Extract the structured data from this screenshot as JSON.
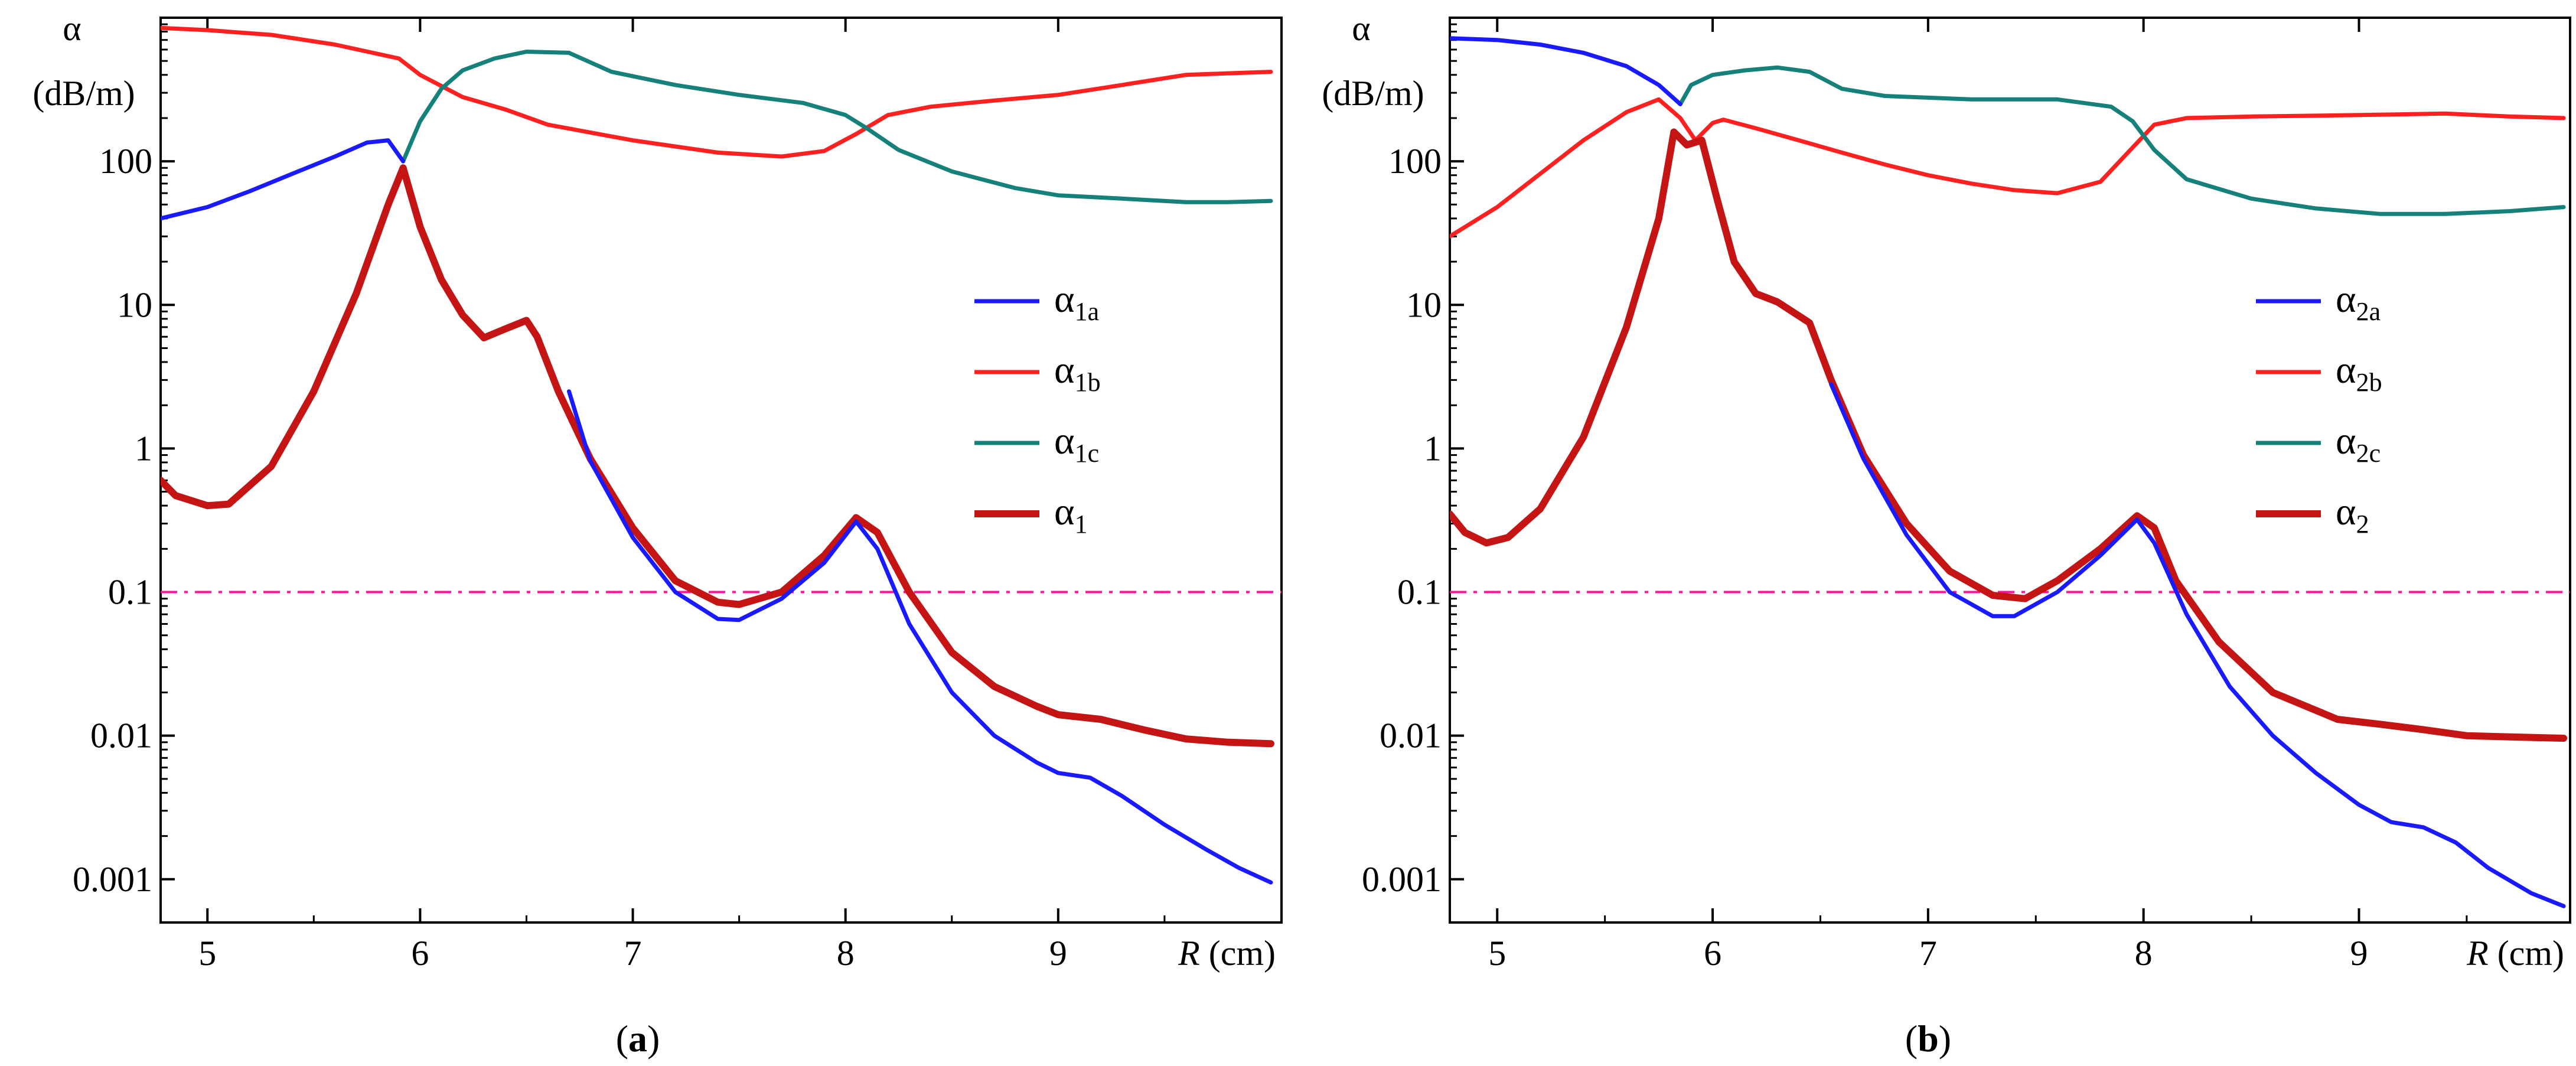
{
  "chart_data": [
    {
      "type": "line",
      "panel": "a",
      "caption": {
        "open": "(",
        "letter": "a",
        "close": ")"
      },
      "y_scale": "log",
      "ylim": [
        0.0005,
        1000
      ],
      "xlim": [
        4.78,
        10.05
      ],
      "ylabel_symbol": "α",
      "ylabel_unit": "(dB/m)",
      "xlabel_var": "R",
      "xlabel_unit": "(cm)",
      "x_ticks": [
        "5",
        "6",
        "7",
        "8",
        "9"
      ],
      "x_tick_values": [
        5,
        6,
        7,
        8,
        9
      ],
      "y_ticks": [
        "0.001",
        "0.01",
        "0.1",
        "1",
        "10",
        "100"
      ],
      "y_tick_values": [
        0.001,
        0.01,
        0.1,
        1,
        10,
        100
      ],
      "threshold": 0.1,
      "threshold_color": "#ff1493",
      "legend": [
        {
          "label": "α",
          "sub": "1a",
          "color": "#1a1aff"
        },
        {
          "label": "α",
          "sub": "1b",
          "color": "#ff2020"
        },
        {
          "label": "α",
          "sub": "1c",
          "color": "#16807a"
        },
        {
          "label": "α",
          "sub": "1",
          "color": "#c41414"
        }
      ],
      "series": [
        {
          "name": "α1a",
          "color": "#1a1aff",
          "width": 7,
          "points": [
            [
              4.78,
              40
            ],
            [
              5.0,
              48
            ],
            [
              5.2,
              62
            ],
            [
              5.4,
              82
            ],
            [
              5.6,
              108
            ],
            [
              5.75,
              135
            ],
            [
              5.85,
              140
            ],
            [
              5.92,
              100
            ]
          ]
        },
        {
          "name": "α1b",
          "color": "#ff2020",
          "width": 7,
          "points": [
            [
              4.78,
              850
            ],
            [
              5.0,
              820
            ],
            [
              5.3,
              760
            ],
            [
              5.6,
              650
            ],
            [
              5.8,
              560
            ],
            [
              5.9,
              520
            ],
            [
              6.0,
              400
            ],
            [
              6.2,
              280
            ],
            [
              6.4,
              230
            ],
            [
              6.6,
              180
            ],
            [
              7.0,
              140
            ],
            [
              7.4,
              115
            ],
            [
              7.7,
              108
            ],
            [
              7.9,
              118
            ],
            [
              8.05,
              155
            ],
            [
              8.2,
              210
            ],
            [
              8.4,
              240
            ],
            [
              8.7,
              265
            ],
            [
              9.0,
              290
            ],
            [
              9.3,
              340
            ],
            [
              9.6,
              400
            ],
            [
              9.8,
              410
            ],
            [
              10.0,
              420
            ]
          ]
        },
        {
          "name": "α1c",
          "color": "#16807a",
          "width": 7,
          "points": [
            [
              5.92,
              100
            ],
            [
              6.0,
              190
            ],
            [
              6.1,
              320
            ],
            [
              6.2,
              430
            ],
            [
              6.35,
              520
            ],
            [
              6.5,
              580
            ],
            [
              6.7,
              570
            ],
            [
              6.9,
              420
            ],
            [
              7.2,
              340
            ],
            [
              7.5,
              290
            ],
            [
              7.8,
              255
            ],
            [
              8.0,
              210
            ],
            [
              8.1,
              170
            ],
            [
              8.25,
              120
            ],
            [
              8.5,
              85
            ],
            [
              8.8,
              65
            ],
            [
              9.0,
              58
            ],
            [
              9.3,
              55
            ],
            [
              9.6,
              52
            ],
            [
              9.8,
              52
            ],
            [
              10.0,
              53
            ]
          ]
        },
        {
          "name": "α1",
          "color": "#c41414",
          "width": 12,
          "points": [
            [
              4.78,
              0.6
            ],
            [
              4.85,
              0.47
            ],
            [
              5.0,
              0.4
            ],
            [
              5.1,
              0.41
            ],
            [
              5.3,
              0.75
            ],
            [
              5.5,
              2.5
            ],
            [
              5.7,
              12
            ],
            [
              5.85,
              50
            ],
            [
              5.92,
              90
            ],
            [
              6.0,
              35
            ],
            [
              6.1,
              15
            ],
            [
              6.2,
              8.5
            ],
            [
              6.3,
              5.9
            ],
            [
              6.4,
              6.8
            ],
            [
              6.5,
              7.8
            ],
            [
              6.55,
              6
            ],
            [
              6.65,
              2.5
            ],
            [
              6.8,
              0.85
            ],
            [
              7.0,
              0.28
            ],
            [
              7.2,
              0.12
            ],
            [
              7.4,
              0.085
            ],
            [
              7.5,
              0.082
            ],
            [
              7.7,
              0.1
            ],
            [
              7.9,
              0.18
            ],
            [
              8.05,
              0.33
            ],
            [
              8.15,
              0.26
            ],
            [
              8.3,
              0.1
            ],
            [
              8.5,
              0.038
            ],
            [
              8.7,
              0.022
            ],
            [
              8.9,
              0.016
            ],
            [
              9.0,
              0.014
            ],
            [
              9.2,
              0.013
            ],
            [
              9.4,
              0.011
            ],
            [
              9.6,
              0.0095
            ],
            [
              9.8,
              0.009
            ],
            [
              10.0,
              0.0088
            ]
          ]
        },
        {
          "name": "α1a-tail",
          "color": "#1a1aff",
          "width": 7,
          "points": [
            [
              6.7,
              2.5
            ],
            [
              6.8,
              0.82
            ],
            [
              7.0,
              0.24
            ],
            [
              7.2,
              0.1
            ],
            [
              7.4,
              0.065
            ],
            [
              7.5,
              0.064
            ],
            [
              7.7,
              0.09
            ],
            [
              7.9,
              0.16
            ],
            [
              8.05,
              0.31
            ],
            [
              8.15,
              0.2
            ],
            [
              8.3,
              0.06
            ],
            [
              8.5,
              0.02
            ],
            [
              8.7,
              0.01
            ],
            [
              8.9,
              0.0065
            ],
            [
              9.0,
              0.0055
            ],
            [
              9.15,
              0.0051
            ],
            [
              9.3,
              0.0038
            ],
            [
              9.5,
              0.0024
            ],
            [
              9.7,
              0.0016
            ],
            [
              9.85,
              0.0012
            ],
            [
              10.0,
              0.00095
            ]
          ]
        }
      ]
    },
    {
      "type": "line",
      "panel": "b",
      "caption": {
        "open": "(",
        "letter": "b",
        "close": ")"
      },
      "y_scale": "log",
      "ylim": [
        0.0005,
        1000
      ],
      "xlim": [
        4.78,
        9.98
      ],
      "ylabel_symbol": "α",
      "ylabel_unit": "(dB/m)",
      "xlabel_var": "R",
      "xlabel_unit": "(cm)",
      "x_ticks": [
        "5",
        "6",
        "7",
        "8",
        "9"
      ],
      "x_tick_values": [
        5,
        6,
        7,
        8,
        9
      ],
      "y_ticks": [
        "0.001",
        "0.01",
        "0.1",
        "1",
        "10",
        "100"
      ],
      "y_tick_values": [
        0.001,
        0.01,
        0.1,
        1,
        10,
        100
      ],
      "threshold": 0.1,
      "threshold_color": "#ff1493",
      "legend": [
        {
          "label": "α",
          "sub": "2a",
          "color": "#1a1aff"
        },
        {
          "label": "α",
          "sub": "2b",
          "color": "#ff2020"
        },
        {
          "label": "α",
          "sub": "2c",
          "color": "#16807a"
        },
        {
          "label": "α",
          "sub": "2",
          "color": "#c41414"
        }
      ],
      "series": [
        {
          "name": "α2a",
          "color": "#1a1aff",
          "width": 7,
          "points": [
            [
              4.78,
              720
            ],
            [
              5.0,
              700
            ],
            [
              5.2,
              650
            ],
            [
              5.4,
              570
            ],
            [
              5.6,
              460
            ],
            [
              5.75,
              340
            ],
            [
              5.85,
              250
            ]
          ]
        },
        {
          "name": "α2b",
          "color": "#ff2020",
          "width": 7,
          "points": [
            [
              4.78,
              30
            ],
            [
              5.0,
              48
            ],
            [
              5.2,
              82
            ],
            [
              5.4,
              140
            ],
            [
              5.6,
              220
            ],
            [
              5.75,
              270
            ],
            [
              5.85,
              200
            ],
            [
              5.92,
              140
            ],
            [
              6.0,
              185
            ],
            [
              6.05,
              195
            ],
            [
              6.2,
              170
            ],
            [
              6.4,
              140
            ],
            [
              6.6,
              115
            ],
            [
              6.8,
              95
            ],
            [
              7.0,
              80
            ],
            [
              7.2,
              70
            ],
            [
              7.4,
              63
            ],
            [
              7.6,
              60
            ],
            [
              7.8,
              72
            ],
            [
              7.95,
              125
            ],
            [
              8.05,
              180
            ],
            [
              8.2,
              200
            ],
            [
              8.5,
              205
            ],
            [
              9.0,
              210
            ],
            [
              9.4,
              215
            ],
            [
              9.7,
              205
            ],
            [
              9.95,
              200
            ]
          ]
        },
        {
          "name": "α2c",
          "color": "#16807a",
          "width": 7,
          "points": [
            [
              5.85,
              250
            ],
            [
              5.9,
              340
            ],
            [
              6.0,
              400
            ],
            [
              6.15,
              430
            ],
            [
              6.3,
              450
            ],
            [
              6.45,
              420
            ],
            [
              6.6,
              320
            ],
            [
              6.8,
              285
            ],
            [
              7.2,
              270
            ],
            [
              7.6,
              270
            ],
            [
              7.85,
              240
            ],
            [
              7.95,
              190
            ],
            [
              8.05,
              120
            ],
            [
              8.2,
              75
            ],
            [
              8.5,
              55
            ],
            [
              8.8,
              47
            ],
            [
              9.1,
              43
            ],
            [
              9.4,
              43
            ],
            [
              9.7,
              45
            ],
            [
              9.95,
              48
            ]
          ]
        },
        {
          "name": "α2",
          "color": "#c41414",
          "width": 12,
          "points": [
            [
              4.78,
              0.35
            ],
            [
              4.85,
              0.26
            ],
            [
              4.95,
              0.22
            ],
            [
              5.05,
              0.24
            ],
            [
              5.2,
              0.38
            ],
            [
              5.4,
              1.2
            ],
            [
              5.6,
              7
            ],
            [
              5.75,
              40
            ],
            [
              5.82,
              160
            ],
            [
              5.88,
              130
            ],
            [
              5.95,
              140
            ],
            [
              6.02,
              55
            ],
            [
              6.1,
              20
            ],
            [
              6.2,
              12
            ],
            [
              6.3,
              10.5
            ],
            [
              6.45,
              7.5
            ],
            [
              6.55,
              3
            ],
            [
              6.7,
              0.9
            ],
            [
              6.9,
              0.3
            ],
            [
              7.1,
              0.14
            ],
            [
              7.3,
              0.095
            ],
            [
              7.45,
              0.09
            ],
            [
              7.6,
              0.12
            ],
            [
              7.8,
              0.2
            ],
            [
              7.97,
              0.34
            ],
            [
              8.05,
              0.28
            ],
            [
              8.15,
              0.12
            ],
            [
              8.35,
              0.045
            ],
            [
              8.6,
              0.02
            ],
            [
              8.9,
              0.013
            ],
            [
              9.1,
              0.012
            ],
            [
              9.3,
              0.011
            ],
            [
              9.5,
              0.01
            ],
            [
              9.7,
              0.0098
            ],
            [
              9.95,
              0.0096
            ]
          ]
        },
        {
          "name": "α2a-tail",
          "color": "#1a1aff",
          "width": 7,
          "points": [
            [
              6.55,
              2.8
            ],
            [
              6.7,
              0.85
            ],
            [
              6.9,
              0.25
            ],
            [
              7.1,
              0.1
            ],
            [
              7.3,
              0.068
            ],
            [
              7.4,
              0.068
            ],
            [
              7.6,
              0.1
            ],
            [
              7.8,
              0.18
            ],
            [
              7.97,
              0.32
            ],
            [
              8.05,
              0.22
            ],
            [
              8.2,
              0.07
            ],
            [
              8.4,
              0.022
            ],
            [
              8.6,
              0.01
            ],
            [
              8.8,
              0.0055
            ],
            [
              9.0,
              0.0033
            ],
            [
              9.15,
              0.0025
            ],
            [
              9.3,
              0.0023
            ],
            [
              9.45,
              0.0018
            ],
            [
              9.6,
              0.0012
            ],
            [
              9.8,
              0.0008
            ],
            [
              9.95,
              0.00065
            ]
          ]
        }
      ]
    }
  ]
}
